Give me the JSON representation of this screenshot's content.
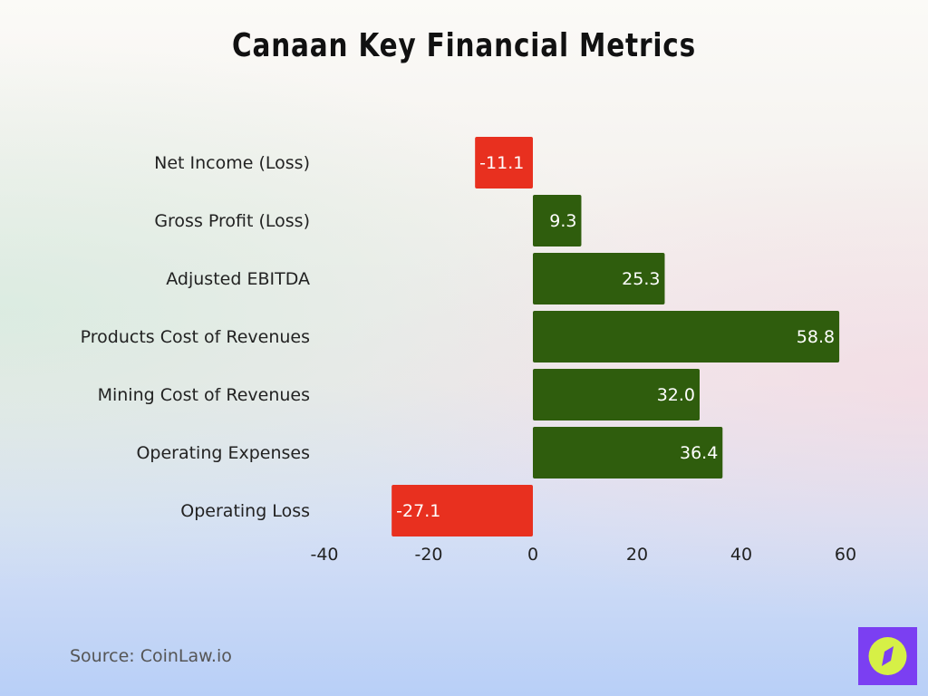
{
  "chart_data": {
    "type": "bar",
    "orientation": "horizontal",
    "title": "Canaan Key Financial Metrics",
    "categories": [
      "Net Income (Loss)",
      "Gross Profit (Loss)",
      "Adjusted EBITDA",
      "Products Cost of Revenues",
      "Mining Cost of Revenues",
      "Operating Expenses",
      "Operating Loss"
    ],
    "values": [
      -11.1,
      9.3,
      25.3,
      58.8,
      32.0,
      36.4,
      -27.1
    ],
    "data_labels": [
      "-11.1",
      "9.3",
      "25.3",
      "58.8",
      "32.0",
      "36.4",
      "-27.1"
    ],
    "xlim": [
      -40,
      60
    ],
    "xticks": [
      -40,
      -20,
      0,
      20,
      40,
      60
    ],
    "xtick_labels": [
      "-40",
      "-20",
      "0",
      "20",
      "40",
      "60"
    ],
    "xlabel": "",
    "ylabel": "",
    "grid": false,
    "colors": {
      "positive": "#2f5d0d",
      "negative": "#e8301f"
    }
  },
  "footer": {
    "source": "Source: CoinLaw.io"
  },
  "logo": {
    "icon": "compass-icon",
    "colors": {
      "square": "#7b3ff2",
      "circle": "#d6f046"
    }
  }
}
